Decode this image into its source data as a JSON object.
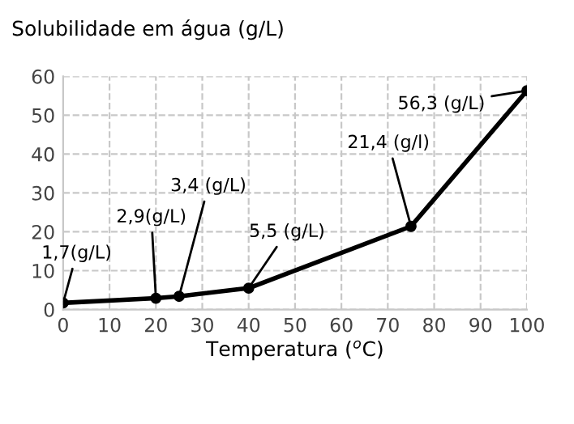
{
  "chart_data": {
    "type": "line",
    "title": "Solubilidade em água (g/L)",
    "xlabel": "Temperatura ($^{o}$C)",
    "x": [
      0,
      20,
      25,
      40,
      75,
      100
    ],
    "series": [
      {
        "color": "#000000",
        "values": [
          1.7,
          2.9,
          3.4,
          5.5,
          21.4,
          56.3
        ]
      }
    ],
    "marker": "circle",
    "line_style": "solid",
    "grid": true,
    "xlim": [
      0,
      100
    ],
    "xticks": [
      0,
      10,
      20,
      30,
      40,
      50,
      60,
      70,
      80,
      90,
      100
    ],
    "ylim": [
      0,
      60
    ],
    "yticks": [
      0,
      10,
      20,
      30,
      40,
      50,
      60
    ],
    "annotations": [
      {
        "text": "1,7(g/L)",
        "x": 0,
        "y": 1.7
      },
      {
        "text": "2,9(g/L)",
        "x": 20,
        "y": 2.9
      },
      {
        "text": "3,4 (g/L)",
        "x": 25,
        "y": 3.4
      },
      {
        "text": "5,5 (g/L)",
        "x": 40,
        "y": 5.5
      },
      {
        "text": "21,4 (g/l)",
        "x": 75,
        "y": 21.4
      },
      {
        "text": "56,3 (g/L)",
        "x": 100,
        "y": 56.3
      }
    ]
  }
}
